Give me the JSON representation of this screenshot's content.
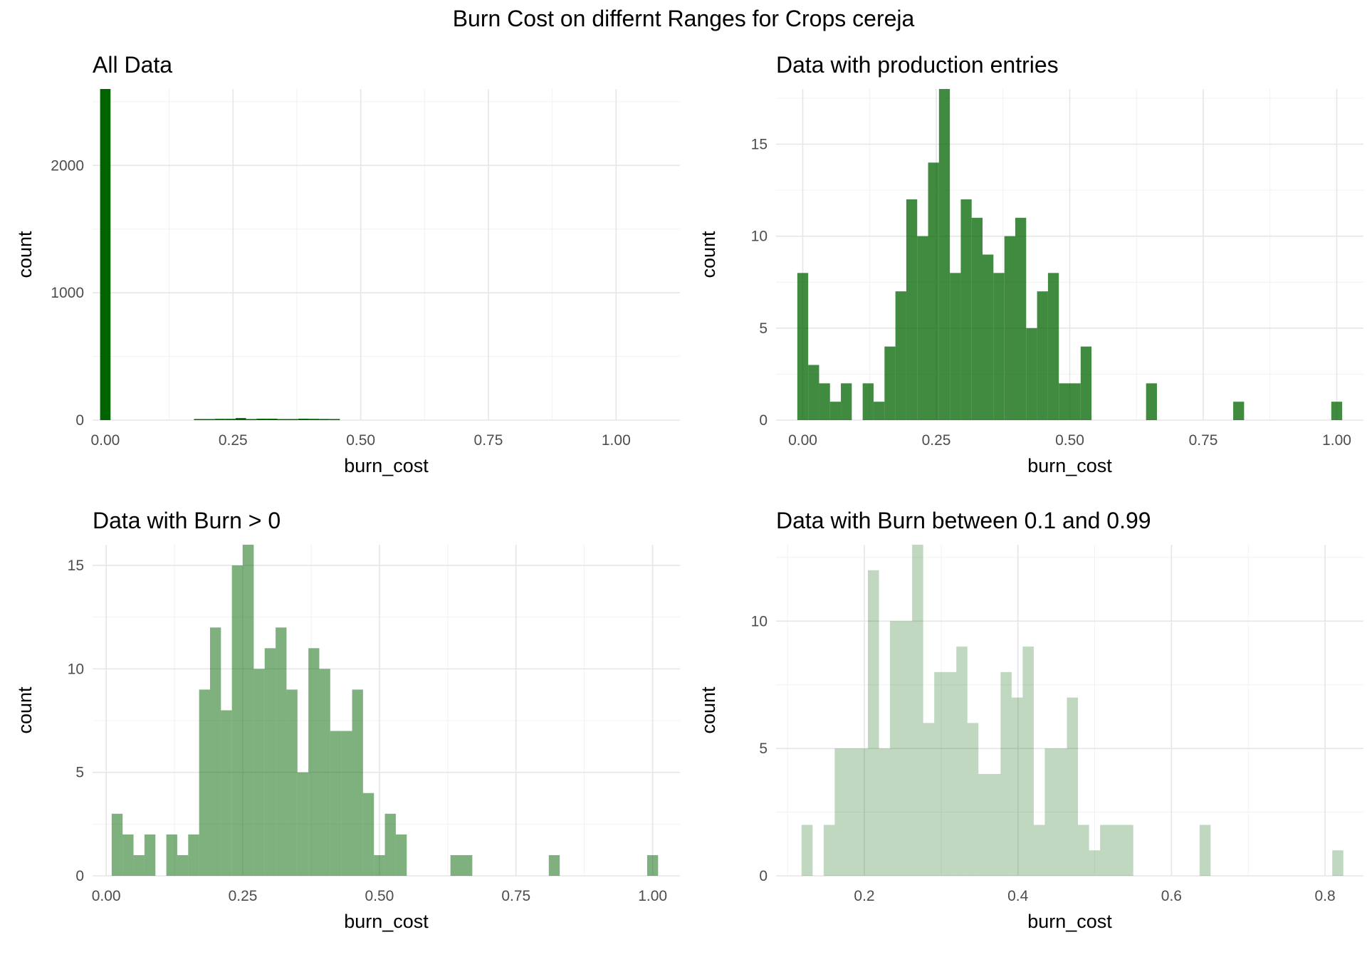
{
  "title": "Burn Cost on differnt Ranges for Crops cereja",
  "chart_data": [
    {
      "type": "bar",
      "title": "All Data",
      "xlabel": "burn_cost",
      "ylabel": "count",
      "color": "#006400",
      "opacity": 1,
      "xlim": [
        -0.025,
        1.125
      ],
      "ylim": [
        0,
        2600
      ],
      "xticks": [
        0,
        0.25,
        0.5,
        0.75,
        1.0
      ],
      "xtick_labels": [
        "0.00",
        "0.25",
        "0.50",
        "0.75",
        "1.00"
      ],
      "yticks": [
        0,
        1000,
        2000
      ],
      "ytick_labels": [
        "0",
        "1000",
        "2000"
      ],
      "bin_width": 0.0204,
      "bins": [
        [
          0.0,
          2600
        ],
        [
          0.1837,
          3
        ],
        [
          0.2041,
          7
        ],
        [
          0.2245,
          10
        ],
        [
          0.2449,
          10
        ],
        [
          0.2653,
          16
        ],
        [
          0.2857,
          8
        ],
        [
          0.3061,
          11
        ],
        [
          0.3265,
          11
        ],
        [
          0.3469,
          7
        ],
        [
          0.3673,
          5
        ],
        [
          0.3878,
          11
        ],
        [
          0.4082,
          10
        ],
        [
          0.4286,
          9
        ],
        [
          0.449,
          3
        ]
      ],
      "grid": true
    },
    {
      "type": "bar",
      "title": "Data with production entries",
      "xlabel": "burn_cost",
      "ylabel": "count",
      "color": "#006400",
      "opacity": 0.75,
      "xlim": [
        -0.05,
        1.05
      ],
      "ylim": [
        0,
        18
      ],
      "xticks": [
        0,
        0.25,
        0.5,
        0.75,
        1.0
      ],
      "xtick_labels": [
        "0.00",
        "0.25",
        "0.50",
        "0.75",
        "1.00"
      ],
      "yticks": [
        0,
        5,
        10,
        15
      ],
      "ytick_labels": [
        "0",
        "5",
        "10",
        "15"
      ],
      "bin_width": 0.0204,
      "bins": [
        [
          0.0,
          8
        ],
        [
          0.0204,
          3
        ],
        [
          0.0408,
          2
        ],
        [
          0.0612,
          1
        ],
        [
          0.0816,
          2
        ],
        [
          0.102,
          0
        ],
        [
          0.1224,
          2
        ],
        [
          0.1429,
          1
        ],
        [
          0.1633,
          4
        ],
        [
          0.1837,
          7
        ],
        [
          0.2041,
          12
        ],
        [
          0.2245,
          10
        ],
        [
          0.2449,
          14
        ],
        [
          0.2653,
          18
        ],
        [
          0.2857,
          8
        ],
        [
          0.3061,
          12
        ],
        [
          0.3265,
          11
        ],
        [
          0.3469,
          9
        ],
        [
          0.3673,
          8
        ],
        [
          0.3878,
          10
        ],
        [
          0.4082,
          11
        ],
        [
          0.4286,
          5
        ],
        [
          0.449,
          7
        ],
        [
          0.4694,
          8
        ],
        [
          0.4898,
          2
        ],
        [
          0.5102,
          2
        ],
        [
          0.5306,
          4
        ],
        [
          0.551,
          0
        ],
        [
          0.5714,
          0
        ],
        [
          0.5918,
          0
        ],
        [
          0.6122,
          0
        ],
        [
          0.6327,
          0
        ],
        [
          0.6531,
          2
        ],
        [
          0.6735,
          0
        ],
        [
          0.6939,
          0
        ],
        [
          0.7143,
          0
        ],
        [
          0.7347,
          0
        ],
        [
          0.7551,
          0
        ],
        [
          0.7755,
          0
        ],
        [
          0.7959,
          0
        ],
        [
          0.8163,
          1
        ],
        [
          0.8367,
          0
        ],
        [
          0.8571,
          0
        ],
        [
          0.8776,
          0
        ],
        [
          0.898,
          0
        ],
        [
          0.9184,
          0
        ],
        [
          0.9388,
          0
        ],
        [
          0.9592,
          0
        ],
        [
          0.9796,
          0
        ],
        [
          1.0,
          1
        ]
      ],
      "grid": true
    },
    {
      "type": "bar",
      "title": "Data with Burn > 0",
      "xlabel": "burn_cost",
      "ylabel": "count",
      "color": "#006400",
      "opacity": 0.5,
      "xlim": [
        -0.025,
        1.05
      ],
      "ylim": [
        0,
        16
      ],
      "xticks": [
        0,
        0.25,
        0.5,
        0.75,
        1.0
      ],
      "xtick_labels": [
        "0.00",
        "0.25",
        "0.50",
        "0.75",
        "1.00"
      ],
      "yticks": [
        0,
        5,
        10,
        15
      ],
      "ytick_labels": [
        "0",
        "5",
        "10",
        "15"
      ],
      "bin_width": 0.02,
      "bins": [
        [
          0.02,
          3
        ],
        [
          0.04,
          2
        ],
        [
          0.06,
          1
        ],
        [
          0.08,
          2
        ],
        [
          0.1,
          0
        ],
        [
          0.12,
          2
        ],
        [
          0.14,
          1
        ],
        [
          0.16,
          2
        ],
        [
          0.18,
          9
        ],
        [
          0.2,
          12
        ],
        [
          0.22,
          8
        ],
        [
          0.24,
          15
        ],
        [
          0.26,
          16
        ],
        [
          0.28,
          10
        ],
        [
          0.3,
          11
        ],
        [
          0.32,
          12
        ],
        [
          0.34,
          9
        ],
        [
          0.36,
          5
        ],
        [
          0.38,
          11
        ],
        [
          0.4,
          10
        ],
        [
          0.42,
          7
        ],
        [
          0.44,
          7
        ],
        [
          0.46,
          9
        ],
        [
          0.48,
          4
        ],
        [
          0.5,
          1
        ],
        [
          0.52,
          3
        ],
        [
          0.54,
          2
        ],
        [
          0.56,
          0
        ],
        [
          0.58,
          0
        ],
        [
          0.6,
          0
        ],
        [
          0.62,
          0
        ],
        [
          0.64,
          1
        ],
        [
          0.66,
          1
        ],
        [
          0.68,
          0
        ],
        [
          0.7,
          0
        ],
        [
          0.72,
          0
        ],
        [
          0.74,
          0
        ],
        [
          0.76,
          0
        ],
        [
          0.78,
          0
        ],
        [
          0.8,
          0
        ],
        [
          0.82,
          1
        ],
        [
          0.84,
          0
        ],
        [
          0.86,
          0
        ],
        [
          0.88,
          0
        ],
        [
          0.9,
          0
        ],
        [
          0.92,
          0
        ],
        [
          0.94,
          0
        ],
        [
          0.96,
          0
        ],
        [
          0.98,
          0
        ],
        [
          1.0,
          1
        ]
      ],
      "grid": true
    },
    {
      "type": "bar",
      "title": "Data with Burn between 0.1 and 0.99",
      "xlabel": "burn_cost",
      "ylabel": "count",
      "color": "#006400",
      "opacity": 0.25,
      "xlim": [
        0.085,
        0.85
      ],
      "ylim": [
        0,
        13
      ],
      "xticks": [
        0.2,
        0.4,
        0.6,
        0.8
      ],
      "xtick_labels": [
        "0.2",
        "0.4",
        "0.6",
        "0.8"
      ],
      "yticks": [
        0,
        5,
        10
      ],
      "ytick_labels": [
        "0",
        "5",
        "10"
      ],
      "bin_width": 0.0144,
      "bins": [
        [
          0.1254,
          2
        ],
        [
          0.1398,
          0
        ],
        [
          0.1542,
          2
        ],
        [
          0.1686,
          5
        ],
        [
          0.183,
          5
        ],
        [
          0.1974,
          5
        ],
        [
          0.2118,
          12
        ],
        [
          0.2262,
          5
        ],
        [
          0.2406,
          10
        ],
        [
          0.255,
          10
        ],
        [
          0.2694,
          13
        ],
        [
          0.2838,
          6
        ],
        [
          0.2982,
          8
        ],
        [
          0.3126,
          8
        ],
        [
          0.327,
          9
        ],
        [
          0.3414,
          6
        ],
        [
          0.3558,
          4
        ],
        [
          0.3702,
          4
        ],
        [
          0.3846,
          8
        ],
        [
          0.399,
          7
        ],
        [
          0.4134,
          9
        ],
        [
          0.4278,
          2
        ],
        [
          0.4422,
          5
        ],
        [
          0.4566,
          5
        ],
        [
          0.471,
          7
        ],
        [
          0.4854,
          2
        ],
        [
          0.4998,
          1
        ],
        [
          0.5142,
          2
        ],
        [
          0.5286,
          2
        ],
        [
          0.543,
          2
        ],
        [
          0.5574,
          0
        ],
        [
          0.5718,
          0
        ],
        [
          0.5862,
          0
        ],
        [
          0.6006,
          0
        ],
        [
          0.615,
          0
        ],
        [
          0.6294,
          0
        ],
        [
          0.6438,
          2
        ],
        [
          0.6582,
          0
        ],
        [
          0.6726,
          0
        ],
        [
          0.687,
          0
        ],
        [
          0.7014,
          0
        ],
        [
          0.7158,
          0
        ],
        [
          0.7302,
          0
        ],
        [
          0.7446,
          0
        ],
        [
          0.759,
          0
        ],
        [
          0.7734,
          0
        ],
        [
          0.7878,
          0
        ],
        [
          0.8022,
          0
        ],
        [
          0.8166,
          1
        ]
      ],
      "grid": true
    }
  ]
}
